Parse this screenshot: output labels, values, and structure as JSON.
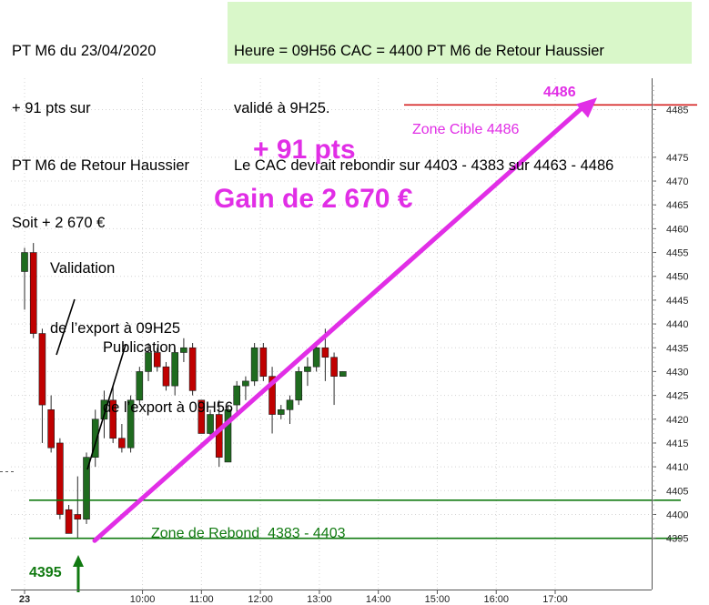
{
  "header": {
    "left_lines": [
      "PT M6 du 23/04/2020",
      "+ 91 pts sur",
      "PT M6 de Retour Haussier",
      "Soit + 2 670 €"
    ],
    "right_lines": [
      "Heure = 09H56 CAC = 4400 PT M6 de Retour Haussier",
      "validé à 9H25.",
      "Le CAC devrait rebondir sur 4403 - 4383 sur 4463 - 4486"
    ]
  },
  "annotations": {
    "validation": [
      "Validation",
      "de l’export à 09H25"
    ],
    "publication": [
      "Publication",
      "de l’export à 09H56"
    ],
    "gain_pts": "+ 91 pts",
    "gain_eur": "Gain de 2 670 €",
    "zone_cible": "Zone Cible 4486",
    "target_value": "4486",
    "zone_rebond": "Zone de Rebond  4383 - 4403",
    "low_value": "4395"
  },
  "colors": {
    "bull": "#1f6b1f",
    "bear": "#c00000",
    "arrow": "#e12ee6",
    "target_line": "#d42020",
    "rebound_line": "#117a11",
    "header_bg": "#d9f7c9"
  },
  "chart_data": {
    "type": "candlestick",
    "timeframe": "M6",
    "ylim": [
      4391,
      4490
    ],
    "yticks": [
      4395,
      4400,
      4405,
      4410,
      4415,
      4420,
      4425,
      4430,
      4435,
      4440,
      4445,
      4450,
      4455,
      4460,
      4465,
      4470,
      4475,
      4485
    ],
    "xticks": [
      {
        "t": 480,
        "label": "23"
      },
      {
        "t": 600,
        "label": "10:00"
      },
      {
        "t": 660,
        "label": "11:00"
      },
      {
        "t": 720,
        "label": "12:00"
      },
      {
        "t": 780,
        "label": "13:00"
      },
      {
        "t": 840,
        "label": "14:00"
      },
      {
        "t": 900,
        "label": "15:00"
      },
      {
        "t": 960,
        "label": "16:00"
      },
      {
        "t": 1020,
        "label": "17:00"
      }
    ],
    "candles": [
      {
        "t": 480,
        "o": 4451,
        "h": 4456,
        "l": 4443,
        "c": 4455
      },
      {
        "t": 489,
        "o": 4455,
        "h": 4457,
        "l": 4437,
        "c": 4438
      },
      {
        "t": 498,
        "o": 4438,
        "h": 4439,
        "l": 4415,
        "c": 4423
      },
      {
        "t": 507,
        "o": 4422,
        "h": 4425,
        "l": 4413,
        "c": 4414
      },
      {
        "t": 516,
        "o": 4415,
        "h": 4416,
        "l": 4399,
        "c": 4400
      },
      {
        "t": 525,
        "o": 4401,
        "h": 4402,
        "l": 4396,
        "c": 4396
      },
      {
        "t": 534,
        "o": 4400,
        "h": 4408,
        "l": 4395,
        "c": 4399
      },
      {
        "t": 543,
        "o": 4399,
        "h": 4413,
        "l": 4398,
        "c": 4412
      },
      {
        "t": 552,
        "o": 4412,
        "h": 4422,
        "l": 4410,
        "c": 4420
      },
      {
        "t": 561,
        "o": 4420,
        "h": 4426,
        "l": 4416,
        "c": 4424
      },
      {
        "t": 570,
        "o": 4424,
        "h": 4427,
        "l": 4415,
        "c": 4416
      },
      {
        "t": 579,
        "o": 4416,
        "h": 4419,
        "l": 4413,
        "c": 4414
      },
      {
        "t": 588,
        "o": 4414,
        "h": 4425,
        "l": 4413,
        "c": 4424
      },
      {
        "t": 597,
        "o": 4424,
        "h": 4431,
        "l": 4423,
        "c": 4430
      },
      {
        "t": 606,
        "o": 4430,
        "h": 4436,
        "l": 4428,
        "c": 4434
      },
      {
        "t": 615,
        "o": 4434,
        "h": 4435,
        "l": 4430,
        "c": 4431
      },
      {
        "t": 624,
        "o": 4431,
        "h": 4432,
        "l": 4426,
        "c": 4427
      },
      {
        "t": 633,
        "o": 4427,
        "h": 4435,
        "l": 4425,
        "c": 4434
      },
      {
        "t": 642,
        "o": 4434,
        "h": 4437,
        "l": 4432,
        "c": 4435
      },
      {
        "t": 651,
        "o": 4435,
        "h": 4436,
        "l": 4425,
        "c": 4426
      },
      {
        "t": 660,
        "o": 4424,
        "h": 4424,
        "l": 4417,
        "c": 4417
      },
      {
        "t": 669,
        "o": 4417,
        "h": 4422,
        "l": 4416,
        "c": 4421
      },
      {
        "t": 678,
        "o": 4421,
        "h": 4424,
        "l": 4410,
        "c": 4412
      },
      {
        "t": 687,
        "o": 4411,
        "h": 4423,
        "l": 4411,
        "c": 4422
      },
      {
        "t": 696,
        "o": 4423,
        "h": 4428,
        "l": 4421,
        "c": 4427
      },
      {
        "t": 705,
        "o": 4427,
        "h": 4429,
        "l": 4424,
        "c": 4428
      },
      {
        "t": 714,
        "o": 4428,
        "h": 4436,
        "l": 4427,
        "c": 4435
      },
      {
        "t": 723,
        "o": 4435,
        "h": 4436,
        "l": 4428,
        "c": 4429
      },
      {
        "t": 732,
        "o": 4429,
        "h": 4431,
        "l": 4417,
        "c": 4421
      },
      {
        "t": 741,
        "o": 4421,
        "h": 4423,
        "l": 4420,
        "c": 4422
      },
      {
        "t": 750,
        "o": 4422,
        "h": 4425,
        "l": 4419,
        "c": 4424
      },
      {
        "t": 759,
        "o": 4424,
        "h": 4431,
        "l": 4423,
        "c": 4430
      },
      {
        "t": 768,
        "o": 4430,
        "h": 4433,
        "l": 4427,
        "c": 4431
      },
      {
        "t": 777,
        "o": 4431,
        "h": 4436,
        "l": 4430,
        "c": 4435
      },
      {
        "t": 786,
        "o": 4435,
        "h": 4439,
        "l": 4428,
        "c": 4433
      },
      {
        "t": 795,
        "o": 4433,
        "h": 4434,
        "l": 4423,
        "c": 4429
      },
      {
        "t": 804,
        "o": 4429,
        "h": 4430,
        "l": 4429,
        "c": 4430
      }
    ]
  }
}
